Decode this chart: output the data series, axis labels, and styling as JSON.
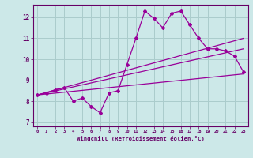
{
  "xlabel": "Windchill (Refroidissement éolien,°C)",
  "bg_color": "#cce8e8",
  "line_color": "#990099",
  "grid_color": "#aacccc",
  "x_ticks": [
    0,
    1,
    2,
    3,
    4,
    5,
    6,
    7,
    8,
    9,
    10,
    11,
    12,
    13,
    14,
    15,
    16,
    17,
    18,
    19,
    20,
    21,
    22,
    23
  ],
  "y_ticks": [
    7,
    8,
    9,
    10,
    11,
    12
  ],
  "ylim": [
    6.8,
    12.6
  ],
  "xlim": [
    -0.5,
    23.5
  ],
  "series1_x": [
    0,
    1,
    2,
    3,
    4,
    5,
    6,
    7,
    8,
    9,
    10,
    11,
    12,
    13,
    14,
    15,
    16,
    17,
    18,
    19,
    20,
    21,
    22,
    23
  ],
  "series1_y": [
    8.3,
    8.4,
    8.55,
    8.65,
    8.0,
    8.15,
    7.75,
    7.45,
    8.4,
    8.5,
    9.75,
    11.0,
    12.3,
    11.95,
    11.5,
    12.2,
    12.3,
    11.65,
    11.0,
    10.5,
    10.5,
    10.4,
    10.15,
    9.4
  ],
  "series2_x": [
    0,
    23
  ],
  "series2_y": [
    8.3,
    9.3
  ],
  "series3_x": [
    0,
    23
  ],
  "series3_y": [
    8.3,
    10.5
  ],
  "series4_x": [
    0,
    23
  ],
  "series4_y": [
    8.3,
    11.0
  ]
}
